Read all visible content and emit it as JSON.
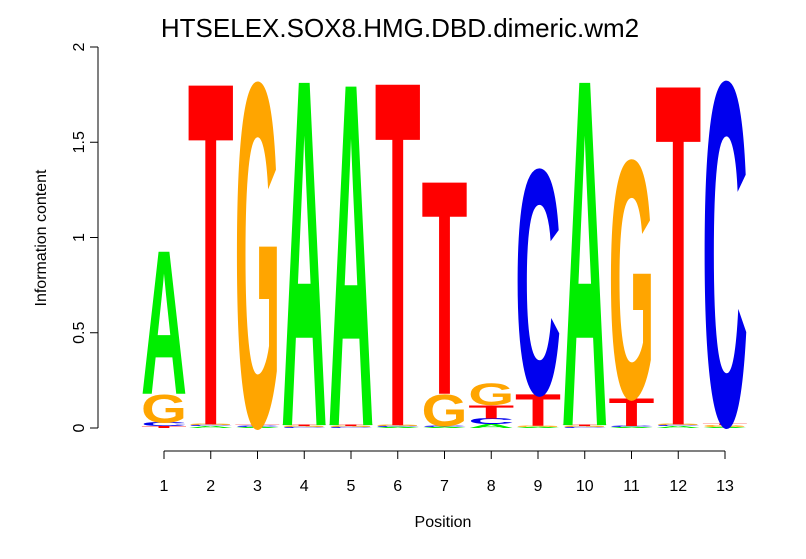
{
  "chart_data": {
    "type": "sequence-logo",
    "title": "HTSELEX.SOX8.HMG.DBD.dimeric.wm2",
    "xlabel": "Position",
    "ylabel": "Information content",
    "ylim": [
      0,
      2
    ],
    "y_ticks": [
      "0",
      "0.5",
      "1",
      "1.5",
      "2"
    ],
    "positions": [
      "1",
      "2",
      "3",
      "4",
      "5",
      "6",
      "7",
      "8",
      "9",
      "10",
      "11",
      "12",
      "13"
    ],
    "colors": {
      "A": "#00ee00",
      "C": "#0000ee",
      "G": "#ffa500",
      "T": "#ff0000"
    },
    "columns": [
      [
        {
          "base": "T",
          "bits": 0.01
        },
        {
          "base": "C",
          "bits": 0.02
        },
        {
          "base": "G",
          "bits": 0.15
        },
        {
          "base": "A",
          "bits": 0.78
        }
      ],
      [
        {
          "base": "A",
          "bits": 0.01
        },
        {
          "base": "C",
          "bits": 0.005
        },
        {
          "base": "G",
          "bits": 0.005
        },
        {
          "base": "T",
          "bits": 1.86
        }
      ],
      [
        {
          "base": "A",
          "bits": 0.005
        },
        {
          "base": "C",
          "bits": 0.005
        },
        {
          "base": "T",
          "bits": 0.005
        },
        {
          "base": "G",
          "bits": 1.86
        }
      ],
      [
        {
          "base": "C",
          "bits": 0.005
        },
        {
          "base": "G",
          "bits": 0.005
        },
        {
          "base": "T",
          "bits": 0.005
        },
        {
          "base": "A",
          "bits": 1.88
        }
      ],
      [
        {
          "base": "C",
          "bits": 0.005
        },
        {
          "base": "G",
          "bits": 0.005
        },
        {
          "base": "T",
          "bits": 0.005
        },
        {
          "base": "A",
          "bits": 1.86
        }
      ],
      [
        {
          "base": "A",
          "bits": 0.005
        },
        {
          "base": "C",
          "bits": 0.005
        },
        {
          "base": "G",
          "bits": 0.005
        },
        {
          "base": "T",
          "bits": 1.87
        }
      ],
      [
        {
          "base": "A",
          "bits": 0.005
        },
        {
          "base": "C",
          "bits": 0.005
        },
        {
          "base": "G",
          "bits": 0.17
        },
        {
          "base": "T",
          "bits": 1.16
        }
      ],
      [
        {
          "base": "A",
          "bits": 0.02
        },
        {
          "base": "C",
          "bits": 0.03
        },
        {
          "base": "T",
          "bits": 0.07
        },
        {
          "base": "G",
          "bits": 0.12
        }
      ],
      [
        {
          "base": "A",
          "bits": 0.005
        },
        {
          "base": "G",
          "bits": 0.005
        },
        {
          "base": "T",
          "bits": 0.17
        },
        {
          "base": "C",
          "bits": 1.22
        }
      ],
      [
        {
          "base": "C",
          "bits": 0.005
        },
        {
          "base": "G",
          "bits": 0.005
        },
        {
          "base": "T",
          "bits": 0.005
        },
        {
          "base": "A",
          "bits": 1.88
        }
      ],
      [
        {
          "base": "A",
          "bits": 0.005
        },
        {
          "base": "C",
          "bits": 0.005
        },
        {
          "base": "T",
          "bits": 0.15
        },
        {
          "base": "G",
          "bits": 1.29
        }
      ],
      [
        {
          "base": "A",
          "bits": 0.01
        },
        {
          "base": "C",
          "bits": 0.005
        },
        {
          "base": "G",
          "bits": 0.005
        },
        {
          "base": "T",
          "bits": 1.85
        }
      ],
      [
        {
          "base": "A",
          "bits": 0.005
        },
        {
          "base": "G",
          "bits": 0.01
        },
        {
          "base": "T",
          "bits": 0.005
        },
        {
          "base": "C",
          "bits": 1.86
        }
      ]
    ]
  }
}
